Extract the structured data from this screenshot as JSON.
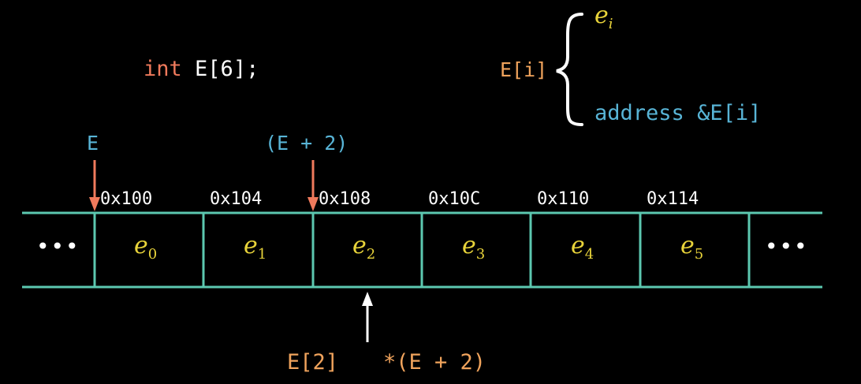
{
  "colors": {
    "background": "#000000",
    "text": "#FFFFFF",
    "keyword": "#F07A5C",
    "pointer": "#58B4D6",
    "element": "#E8D33A",
    "accessor": "#F0A35C",
    "grid": "#5CC8B0",
    "arrow_red": "#F07A5C",
    "arrow_white": "#FFFFFF"
  },
  "declaration": {
    "keyword": "int",
    "rest": "E[6];"
  },
  "brace_note": {
    "lhs": "E[i]",
    "top_base": "e",
    "top_sub": "i",
    "bottom_prefix": "address",
    "bottom_expr": "&E[i]"
  },
  "pointers": {
    "base": "E",
    "offset": "(E + 2)"
  },
  "addresses": [
    "0x100",
    "0x104",
    "0x108",
    "0x10C",
    "0x110",
    "0x114"
  ],
  "cells": [
    {
      "base": "e",
      "sub": "0"
    },
    {
      "base": "e",
      "sub": "1"
    },
    {
      "base": "e",
      "sub": "2"
    },
    {
      "base": "e",
      "sub": "3"
    },
    {
      "base": "e",
      "sub": "4"
    },
    {
      "base": "e",
      "sub": "5"
    }
  ],
  "ellipsis": "•••",
  "access": {
    "index_form": "E[2]",
    "deref_form": "*(E + 2)"
  }
}
